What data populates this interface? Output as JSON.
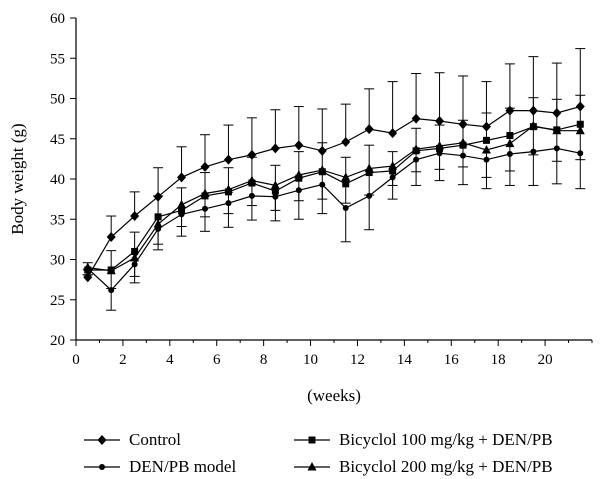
{
  "chart_data": {
    "type": "line",
    "title": "",
    "xlabel": "(weeks)",
    "ylabel": "Body weight (g)",
    "xlim": [
      0,
      22
    ],
    "ylim": [
      20,
      60
    ],
    "xticks": [
      0,
      2,
      4,
      6,
      8,
      10,
      12,
      14,
      16,
      18,
      20
    ],
    "yticks": [
      20,
      25,
      30,
      35,
      40,
      45,
      50,
      55,
      60
    ],
    "grid": false,
    "legend_position": "bottom",
    "x": [
      0.5,
      1.5,
      2.5,
      3.5,
      4.5,
      5.5,
      6.5,
      7.5,
      8.5,
      9.5,
      10.5,
      11.5,
      12.5,
      13.5,
      14.5,
      15.5,
      16.5,
      17.5,
      18.5,
      19.5,
      20.5,
      21.5
    ],
    "series": [
      {
        "name": "Control",
        "marker": "diamond",
        "values": [
          27.8,
          32.8,
          35.4,
          37.8,
          40.2,
          41.5,
          42.4,
          43.0,
          43.8,
          44.2,
          43.5,
          44.6,
          46.2,
          45.7,
          47.5,
          47.2,
          46.8,
          46.5,
          48.5,
          48.5,
          48.2,
          49.0
        ],
        "errors": [
          1.0,
          2.6,
          3.0,
          3.6,
          3.8,
          4.0,
          4.3,
          4.6,
          4.8,
          4.8,
          5.2,
          4.7,
          5.0,
          6.4,
          5.6,
          6.0,
          6.0,
          5.6,
          5.8,
          6.7,
          6.2,
          7.2
        ]
      },
      {
        "name": "DEN/PB model",
        "marker": "circle",
        "values": [
          28.9,
          26.2,
          29.4,
          33.8,
          35.6,
          36.3,
          37.0,
          37.9,
          37.8,
          38.6,
          39.3,
          36.4,
          37.9,
          40.2,
          42.4,
          43.2,
          42.9,
          42.4,
          43.1,
          43.4,
          43.8,
          43.2
        ],
        "errors": [
          0.8,
          2.5,
          2.3,
          2.6,
          2.7,
          2.8,
          3.0,
          3.0,
          3.0,
          3.6,
          3.6,
          4.2,
          4.2,
          2.7,
          3.2,
          3.4,
          3.6,
          3.6,
          3.9,
          4.2,
          4.4,
          4.4
        ]
      },
      {
        "name": "Bicyclol 100 mg/kg + DEN/PB",
        "marker": "square",
        "values": [
          28.7,
          28.7,
          31.0,
          35.3,
          36.1,
          37.9,
          38.4,
          39.5,
          38.5,
          40.1,
          40.9,
          39.4,
          40.8,
          41.0,
          43.5,
          43.8,
          44.2,
          44.8,
          45.4,
          46.5,
          46.1,
          46.8
        ],
        "errors": [
          0.9,
          2.4,
          2.4,
          2.6,
          2.8,
          2.9,
          3.0,
          3.2,
          3.2,
          3.3,
          3.6,
          3.3,
          3.4,
          2.4,
          2.8,
          2.9,
          3.1,
          3.4,
          3.4,
          3.6,
          3.8,
          3.6
        ]
      },
      {
        "name": "Bicyclol 200 mg/kg + DEN/PB",
        "marker": "triangle",
        "values": [
          29.0,
          28.6,
          30.2,
          34.4,
          36.8,
          38.2,
          38.7,
          39.8,
          39.2,
          40.5,
          41.1,
          40.2,
          41.3,
          41.6,
          43.7,
          44.1,
          44.5,
          43.6,
          44.4,
          46.6,
          46.0,
          46.0
        ],
        "errors": [
          0.9,
          2.2,
          2.3,
          2.5,
          2.7,
          2.9,
          3.0,
          3.1,
          3.1,
          3.2,
          3.6,
          3.2,
          3.3,
          2.4,
          2.8,
          2.9,
          3.0,
          3.4,
          3.4,
          3.6,
          3.8,
          3.6
        ]
      }
    ]
  }
}
